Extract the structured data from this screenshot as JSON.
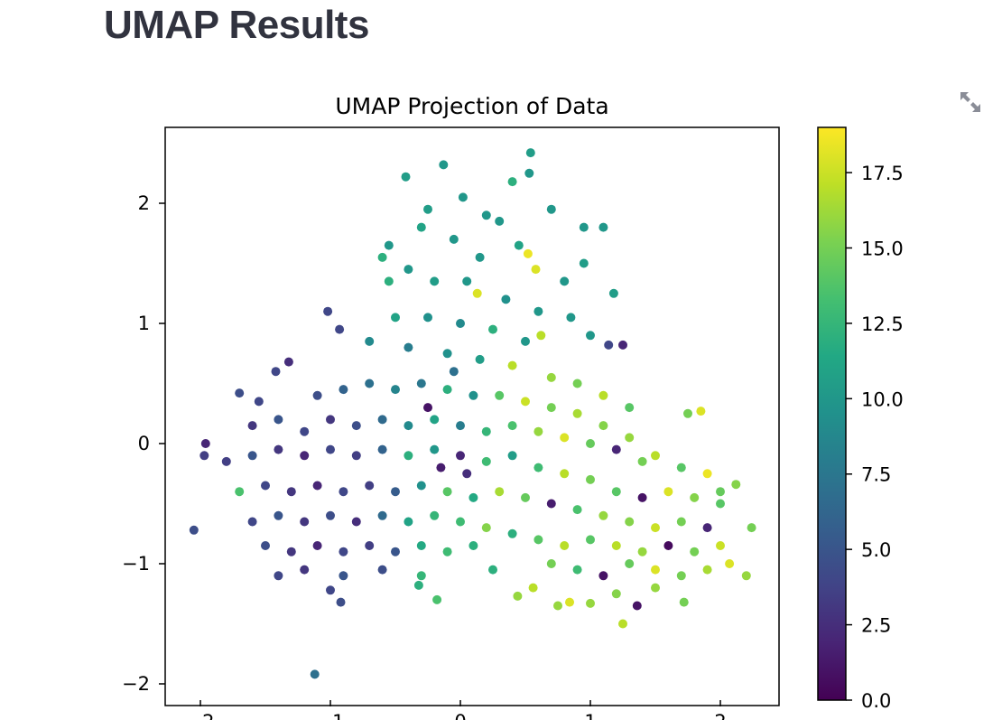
{
  "page": {
    "heading": "UMAP Results"
  },
  "toolbar": {
    "expand_icon": "expand-icon"
  },
  "colors": {
    "heading": "#31333f",
    "axis": "#000000",
    "colormap": "viridis"
  },
  "chart_data": {
    "type": "scatter",
    "title": "UMAP Projection of Data",
    "xlabel": "",
    "ylabel": "",
    "xlim": [
      -2.25,
      2.45
    ],
    "ylim": [
      -2.12,
      2.62
    ],
    "x_ticks": [
      {
        "value": -2,
        "label": "−2"
      },
      {
        "value": -1,
        "label": "−1"
      },
      {
        "value": 0,
        "label": "0"
      },
      {
        "value": 1,
        "label": "1"
      },
      {
        "value": 2,
        "label": "2"
      }
    ],
    "y_ticks": [
      {
        "value": 2,
        "label": "2"
      },
      {
        "value": 1,
        "label": "1"
      },
      {
        "value": 0,
        "label": "0"
      },
      {
        "value": -1,
        "label": "−1"
      },
      {
        "value": -2,
        "label": "−2"
      }
    ],
    "colorbar": {
      "range": [
        0,
        19
      ],
      "ticks": [
        {
          "value": 0.0,
          "label": "0.0"
        },
        {
          "value": 2.5,
          "label": "2.5"
        },
        {
          "value": 5.0,
          "label": "5.0"
        },
        {
          "value": 7.5,
          "label": "7.5"
        },
        {
          "value": 10.0,
          "label": "10.0"
        },
        {
          "value": 12.5,
          "label": "12.5"
        },
        {
          "value": 15.0,
          "label": "15.0"
        },
        {
          "value": 17.5,
          "label": "17.5"
        }
      ]
    },
    "points": [
      {
        "x": -2.05,
        "y": -0.72,
        "c": 4.5
      },
      {
        "x": -1.12,
        "y": -1.92,
        "c": 7.0
      },
      {
        "x": -0.42,
        "y": 2.22,
        "c": 10.5
      },
      {
        "x": -0.13,
        "y": 2.32,
        "c": 10.0
      },
      {
        "x": 0.54,
        "y": 2.42,
        "c": 10.5
      },
      {
        "x": 0.53,
        "y": 2.25,
        "c": 10.0
      },
      {
        "x": 0.02,
        "y": 2.05,
        "c": 10.0
      },
      {
        "x": 0.4,
        "y": 2.18,
        "c": 12.0
      },
      {
        "x": 1.1,
        "y": 1.8,
        "c": 10.0
      },
      {
        "x": 1.18,
        "y": 1.25,
        "c": 10.5
      },
      {
        "x": -1.02,
        "y": 1.1,
        "c": 4.0
      },
      {
        "x": -0.93,
        "y": 0.95,
        "c": 4.0
      },
      {
        "x": -1.96,
        "y": 0.0,
        "c": 2.0
      },
      {
        "x": -1.97,
        "y": -0.1,
        "c": 3.5
      },
      {
        "x": -1.7,
        "y": 0.42,
        "c": 4.5
      },
      {
        "x": -1.55,
        "y": 0.35,
        "c": 4.0
      },
      {
        "x": -1.32,
        "y": 0.68,
        "c": 2.5
      },
      {
        "x": -1.42,
        "y": 0.6,
        "c": 4.0
      },
      {
        "x": -0.92,
        "y": -1.32,
        "c": 4.5
      },
      {
        "x": -1.0,
        "y": -1.22,
        "c": 4.0
      },
      {
        "x": 0.25,
        "y": -1.05,
        "c": 12.0
      },
      {
        "x": -0.18,
        "y": -1.3,
        "c": 13.5
      },
      {
        "x": -0.32,
        "y": -1.18,
        "c": 12.0
      },
      {
        "x": 0.44,
        "y": -1.27,
        "c": 16.0
      },
      {
        "x": 0.56,
        "y": -1.2,
        "c": 17.0
      },
      {
        "x": 0.75,
        "y": -1.35,
        "c": 16.0
      },
      {
        "x": 0.84,
        "y": -1.32,
        "c": 18.0
      },
      {
        "x": 1.0,
        "y": -1.33,
        "c": 16.0
      },
      {
        "x": 1.25,
        "y": -1.5,
        "c": 17.0
      },
      {
        "x": 1.36,
        "y": -1.35,
        "c": 1.0
      },
      {
        "x": 1.72,
        "y": -1.32,
        "c": 15.0
      },
      {
        "x": 2.2,
        "y": -1.1,
        "c": 16.0
      },
      {
        "x": 2.24,
        "y": -0.7,
        "c": 15.0
      },
      {
        "x": 2.12,
        "y": -0.34,
        "c": 15.5
      },
      {
        "x": 1.75,
        "y": 0.25,
        "c": 15.0
      },
      {
        "x": 1.85,
        "y": 0.27,
        "c": 18.0
      },
      {
        "x": 2.0,
        "y": -0.5,
        "c": 14.0
      },
      {
        "x": 2.07,
        "y": -1.0,
        "c": 18.0
      },
      {
        "x": 1.25,
        "y": 0.82,
        "c": 2.0
      },
      {
        "x": 1.14,
        "y": 0.82,
        "c": 4.0
      },
      {
        "x": 1.0,
        "y": 0.9,
        "c": 10.0
      },
      {
        "x": 0.62,
        "y": 0.9,
        "c": 17.0
      },
      {
        "x": 0.58,
        "y": 1.45,
        "c": 18.0
      },
      {
        "x": 0.52,
        "y": 1.58,
        "c": 18.5
      },
      {
        "x": 0.13,
        "y": 1.25,
        "c": 18.0
      },
      {
        "x": -0.55,
        "y": 1.35,
        "c": 12.0
      },
      {
        "x": -0.6,
        "y": 1.55,
        "c": 12.0
      },
      {
        "x": -0.55,
        "y": 1.65,
        "c": 10.0
      },
      {
        "x": -0.3,
        "y": 1.8,
        "c": 11.0
      },
      {
        "x": -0.25,
        "y": 1.95,
        "c": 10.5
      },
      {
        "x": 0.2,
        "y": 1.9,
        "c": 10.0
      },
      {
        "x": 0.3,
        "y": 1.85,
        "c": 10.0
      },
      {
        "x": 0.7,
        "y": 1.95,
        "c": 10.0
      },
      {
        "x": 0.95,
        "y": 1.8,
        "c": 10.0
      },
      {
        "x": 0.95,
        "y": 1.5,
        "c": 10.5
      },
      {
        "x": 0.8,
        "y": 1.35,
        "c": 10.0
      },
      {
        "x": 0.45,
        "y": 1.65,
        "c": 11.0
      },
      {
        "x": 0.15,
        "y": 1.55,
        "c": 10.0
      },
      {
        "x": -0.05,
        "y": 1.7,
        "c": 10.0
      },
      {
        "x": -0.4,
        "y": 1.45,
        "c": 10.0
      },
      {
        "x": -0.2,
        "y": 1.35,
        "c": 10.5
      },
      {
        "x": 0.05,
        "y": 1.35,
        "c": 10.0
      },
      {
        "x": 0.35,
        "y": 1.2,
        "c": 9.5
      },
      {
        "x": 0.6,
        "y": 1.1,
        "c": 10.0
      },
      {
        "x": 0.85,
        "y": 1.05,
        "c": 10.0
      },
      {
        "x": -0.5,
        "y": 1.05,
        "c": 11.0
      },
      {
        "x": -0.25,
        "y": 1.05,
        "c": 9.5
      },
      {
        "x": 0.0,
        "y": 1.0,
        "c": 9.0
      },
      {
        "x": 0.25,
        "y": 0.95,
        "c": 12.0
      },
      {
        "x": 0.5,
        "y": 0.85,
        "c": 10.0
      },
      {
        "x": -0.7,
        "y": 0.85,
        "c": 9.0
      },
      {
        "x": -0.4,
        "y": 0.8,
        "c": 8.0
      },
      {
        "x": -0.1,
        "y": 0.75,
        "c": 9.5
      },
      {
        "x": 0.15,
        "y": 0.7,
        "c": 10.5
      },
      {
        "x": 0.4,
        "y": 0.65,
        "c": 17.0
      },
      {
        "x": 0.7,
        "y": 0.55,
        "c": 16.0
      },
      {
        "x": 0.9,
        "y": 0.5,
        "c": 15.0
      },
      {
        "x": 1.1,
        "y": 0.4,
        "c": 17.0
      },
      {
        "x": 1.3,
        "y": 0.3,
        "c": 14.0
      },
      {
        "x": -1.1,
        "y": 0.4,
        "c": 4.5
      },
      {
        "x": -0.9,
        "y": 0.45,
        "c": 6.0
      },
      {
        "x": -0.7,
        "y": 0.5,
        "c": 7.0
      },
      {
        "x": -0.5,
        "y": 0.45,
        "c": 8.5
      },
      {
        "x": -0.3,
        "y": 0.5,
        "c": 7.5
      },
      {
        "x": -0.1,
        "y": 0.45,
        "c": 12.0
      },
      {
        "x": 0.1,
        "y": 0.4,
        "c": 9.5
      },
      {
        "x": 0.3,
        "y": 0.4,
        "c": 14.0
      },
      {
        "x": 0.5,
        "y": 0.35,
        "c": 17.5
      },
      {
        "x": 0.7,
        "y": 0.3,
        "c": 15.0
      },
      {
        "x": 0.9,
        "y": 0.25,
        "c": 16.5
      },
      {
        "x": 1.1,
        "y": 0.15,
        "c": 15.5
      },
      {
        "x": 1.3,
        "y": 0.05,
        "c": 16.0
      },
      {
        "x": 1.5,
        "y": -0.1,
        "c": 17.0
      },
      {
        "x": 1.7,
        "y": -0.2,
        "c": 14.0
      },
      {
        "x": 1.9,
        "y": -0.25,
        "c": 18.5
      },
      {
        "x": -1.6,
        "y": 0.15,
        "c": 3.0
      },
      {
        "x": -1.4,
        "y": 0.2,
        "c": 5.0
      },
      {
        "x": -1.2,
        "y": 0.1,
        "c": 4.0
      },
      {
        "x": -1.0,
        "y": 0.2,
        "c": 3.0
      },
      {
        "x": -0.8,
        "y": 0.15,
        "c": 4.5
      },
      {
        "x": -0.6,
        "y": 0.2,
        "c": 6.5
      },
      {
        "x": -0.4,
        "y": 0.15,
        "c": 9.0
      },
      {
        "x": -0.2,
        "y": 0.2,
        "c": 11.0
      },
      {
        "x": 0.0,
        "y": 0.15,
        "c": 8.0
      },
      {
        "x": 0.2,
        "y": 0.1,
        "c": 12.5
      },
      {
        "x": 0.4,
        "y": 0.15,
        "c": 13.5
      },
      {
        "x": 0.6,
        "y": 0.1,
        "c": 16.0
      },
      {
        "x": 0.8,
        "y": 0.05,
        "c": 18.0
      },
      {
        "x": 1.0,
        "y": 0.0,
        "c": 14.5
      },
      {
        "x": 1.2,
        "y": -0.05,
        "c": 2.0
      },
      {
        "x": 1.4,
        "y": -0.15,
        "c": 15.0
      },
      {
        "x": -1.8,
        "y": -0.15,
        "c": 3.5
      },
      {
        "x": -1.6,
        "y": -0.1,
        "c": 5.0
      },
      {
        "x": -1.4,
        "y": -0.05,
        "c": 3.0
      },
      {
        "x": -1.2,
        "y": -0.1,
        "c": 2.0
      },
      {
        "x": -1.0,
        "y": -0.05,
        "c": 4.0
      },
      {
        "x": -0.8,
        "y": -0.1,
        "c": 3.5
      },
      {
        "x": -0.6,
        "y": -0.05,
        "c": 6.0
      },
      {
        "x": -0.4,
        "y": -0.1,
        "c": 12.0
      },
      {
        "x": -0.2,
        "y": -0.05,
        "c": 10.0
      },
      {
        "x": 0.0,
        "y": -0.1,
        "c": 2.0
      },
      {
        "x": 0.2,
        "y": -0.15,
        "c": 13.0
      },
      {
        "x": 0.4,
        "y": -0.1,
        "c": 10.5
      },
      {
        "x": 0.6,
        "y": -0.2,
        "c": 13.0
      },
      {
        "x": 0.8,
        "y": -0.25,
        "c": 17.0
      },
      {
        "x": 1.0,
        "y": -0.3,
        "c": 15.0
      },
      {
        "x": 1.2,
        "y": -0.4,
        "c": 14.0
      },
      {
        "x": 1.4,
        "y": -0.45,
        "c": 1.0
      },
      {
        "x": 1.6,
        "y": -0.4,
        "c": 18.0
      },
      {
        "x": 1.8,
        "y": -0.45,
        "c": 15.5
      },
      {
        "x": 2.0,
        "y": -0.4,
        "c": 14.5
      },
      {
        "x": -1.7,
        "y": -0.4,
        "c": 13.5
      },
      {
        "x": -1.5,
        "y": -0.35,
        "c": 4.0
      },
      {
        "x": -1.3,
        "y": -0.4,
        "c": 3.0
      },
      {
        "x": -1.1,
        "y": -0.35,
        "c": 2.0
      },
      {
        "x": -0.9,
        "y": -0.4,
        "c": 4.0
      },
      {
        "x": -0.7,
        "y": -0.35,
        "c": 3.5
      },
      {
        "x": -0.5,
        "y": -0.4,
        "c": 5.5
      },
      {
        "x": -0.3,
        "y": -0.35,
        "c": 9.5
      },
      {
        "x": -0.1,
        "y": -0.4,
        "c": 14.0
      },
      {
        "x": 0.1,
        "y": -0.45,
        "c": 11.5
      },
      {
        "x": 0.3,
        "y": -0.4,
        "c": 16.5
      },
      {
        "x": 0.5,
        "y": -0.45,
        "c": 14.5
      },
      {
        "x": 0.7,
        "y": -0.5,
        "c": 1.5
      },
      {
        "x": 0.9,
        "y": -0.55,
        "c": 13.5
      },
      {
        "x": 1.1,
        "y": -0.6,
        "c": 16.0
      },
      {
        "x": 1.3,
        "y": -0.65,
        "c": 15.5
      },
      {
        "x": 1.5,
        "y": -0.7,
        "c": 17.5
      },
      {
        "x": 1.7,
        "y": -0.65,
        "c": 15.0
      },
      {
        "x": 1.9,
        "y": -0.7,
        "c": 2.0
      },
      {
        "x": -1.6,
        "y": -0.65,
        "c": 4.0
      },
      {
        "x": -1.4,
        "y": -0.6,
        "c": 5.0
      },
      {
        "x": -1.2,
        "y": -0.65,
        "c": 3.0
      },
      {
        "x": -1.0,
        "y": -0.6,
        "c": 4.5
      },
      {
        "x": -0.8,
        "y": -0.65,
        "c": 2.5
      },
      {
        "x": -0.6,
        "y": -0.6,
        "c": 6.5
      },
      {
        "x": -0.4,
        "y": -0.65,
        "c": 11.0
      },
      {
        "x": -0.2,
        "y": -0.6,
        "c": 12.5
      },
      {
        "x": 0.0,
        "y": -0.65,
        "c": 13.0
      },
      {
        "x": 0.2,
        "y": -0.7,
        "c": 15.5
      },
      {
        "x": 0.4,
        "y": -0.75,
        "c": 12.0
      },
      {
        "x": 0.6,
        "y": -0.8,
        "c": 14.0
      },
      {
        "x": 0.8,
        "y": -0.85,
        "c": 17.0
      },
      {
        "x": 1.0,
        "y": -0.8,
        "c": 14.0
      },
      {
        "x": 1.2,
        "y": -0.85,
        "c": 17.0
      },
      {
        "x": 1.4,
        "y": -0.9,
        "c": 16.0
      },
      {
        "x": 1.6,
        "y": -0.85,
        "c": 0.5
      },
      {
        "x": 1.8,
        "y": -0.9,
        "c": 15.0
      },
      {
        "x": 2.0,
        "y": -0.85,
        "c": 17.5
      },
      {
        "x": -1.5,
        "y": -0.85,
        "c": 4.5
      },
      {
        "x": -1.3,
        "y": -0.9,
        "c": 3.0
      },
      {
        "x": -1.1,
        "y": -0.85,
        "c": 2.0
      },
      {
        "x": -0.9,
        "y": -0.9,
        "c": 4.0
      },
      {
        "x": -0.7,
        "y": -0.85,
        "c": 3.5
      },
      {
        "x": -0.5,
        "y": -0.9,
        "c": 5.0
      },
      {
        "x": -0.3,
        "y": -0.85,
        "c": 11.5
      },
      {
        "x": -0.1,
        "y": -0.9,
        "c": 13.0
      },
      {
        "x": 0.1,
        "y": -0.85,
        "c": 12.0
      },
      {
        "x": 0.7,
        "y": -1.0,
        "c": 15.0
      },
      {
        "x": 0.9,
        "y": -1.05,
        "c": 13.0
      },
      {
        "x": 1.1,
        "y": -1.1,
        "c": 1.0
      },
      {
        "x": 1.3,
        "y": -1.0,
        "c": 14.5
      },
      {
        "x": 1.5,
        "y": -1.05,
        "c": 18.0
      },
      {
        "x": 1.7,
        "y": -1.1,
        "c": 15.0
      },
      {
        "x": 1.9,
        "y": -1.05,
        "c": 16.5
      },
      {
        "x": -1.4,
        "y": -1.1,
        "c": 4.0
      },
      {
        "x": -1.2,
        "y": -1.05,
        "c": 3.0
      },
      {
        "x": -0.9,
        "y": -1.1,
        "c": 5.0
      },
      {
        "x": -0.6,
        "y": -1.05,
        "c": 4.5
      },
      {
        "x": -0.3,
        "y": -1.1,
        "c": 12.5
      },
      {
        "x": 1.2,
        "y": -1.25,
        "c": 15.5
      },
      {
        "x": 1.5,
        "y": -1.2,
        "c": 16.0
      },
      {
        "x": -0.05,
        "y": 0.6,
        "c": 7.0
      },
      {
        "x": -0.25,
        "y": 0.3,
        "c": 1.0
      },
      {
        "x": 0.05,
        "y": -0.25,
        "c": 2.5
      },
      {
        "x": -0.15,
        "y": -0.2,
        "c": 1.5
      }
    ]
  }
}
